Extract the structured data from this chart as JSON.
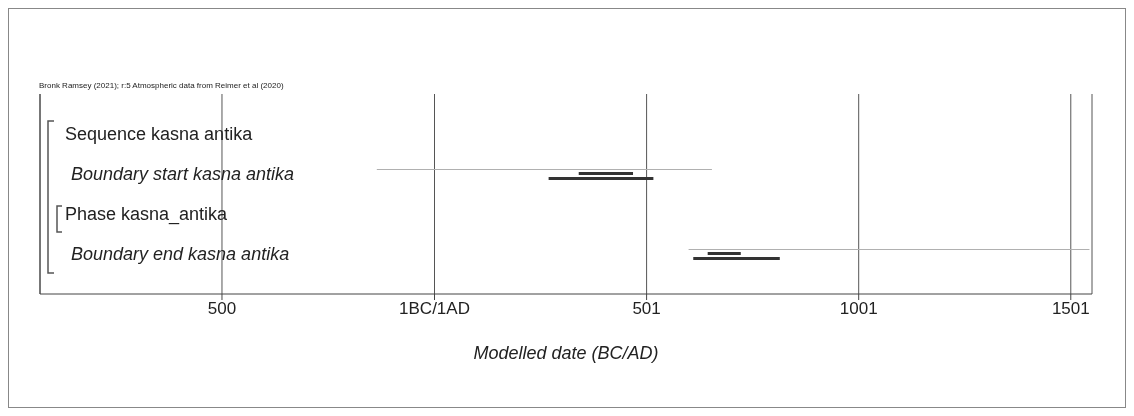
{
  "chart_data": {
    "type": "bar",
    "orientation": "horizontal",
    "xlabel": "Modelled date (BC/AD)",
    "annotations": [
      "Bronk Ramsey (2021); r:5 Atmospheric data from Reimer et al (2020)"
    ],
    "categories": [
      "Sequence kasna antika",
      "Boundary start kasna antika",
      "Phase kasna_antika",
      "Boundary end kasna antika"
    ],
    "series": [
      {
        "color": "#b0b0b0",
        "base": [
          null,
          -135,
          null,
          600
        ],
        "values": [
          null,
          790,
          null,
          945
        ]
      },
      {
        "color": "#333333",
        "base": [
          null,
          341,
          null,
          645
        ],
        "values": [
          null,
          128,
          null,
          78
        ]
      },
      {
        "color": "#333333",
        "base": [
          null,
          270,
          null,
          611
        ],
        "values": [
          null,
          247,
          null,
          204
        ]
      }
    ],
    "xlim": [
      -929,
      1551
    ],
    "xticks": [
      {
        "value": -500,
        "label": "500"
      },
      {
        "value": 1,
        "label": "1BC/1AD"
      },
      501,
      1001,
      1501
    ],
    "grid": "x"
  }
}
